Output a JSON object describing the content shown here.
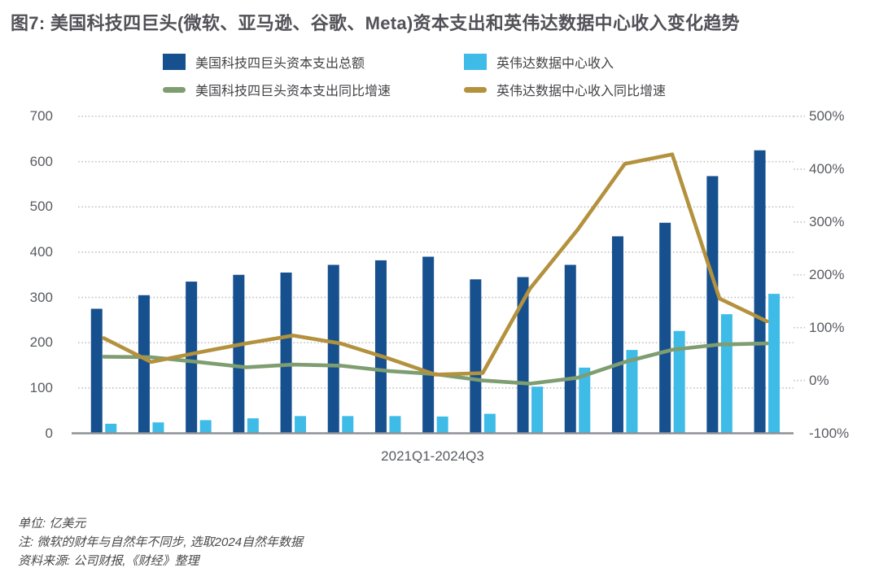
{
  "title": "图7: 美国科技四巨头(微软、亚马逊、谷歌、Meta)资本支出和英伟达数据中心收入变化趋势",
  "colors": {
    "capex_bar": "#17508e",
    "nvda_bar": "#3fbbe7",
    "capex_growth_line": "#7e9d70",
    "nvda_growth_line": "#b3913d",
    "title_text": "#525158",
    "axis_text": "#595b61",
    "gridline": "#c3c3c3",
    "baseline": "#8e9096"
  },
  "legend": [
    {
      "label": "美国科技四巨头资本支出总额",
      "swatch": "square",
      "color_key": "capex_bar"
    },
    {
      "label": "英伟达数据中心收入",
      "swatch": "square",
      "color_key": "nvda_bar"
    },
    {
      "label": "美国科技四巨头资本支出同比增速",
      "swatch": "line",
      "color_key": "capex_growth_line"
    },
    {
      "label": "英伟达数据中心收入同比增速",
      "swatch": "line",
      "color_key": "nvda_growth_line"
    }
  ],
  "chart_data": {
    "type": "bar+line dual-axis combo",
    "categories": [
      "2021Q1",
      "2021Q2",
      "2021Q3",
      "2021Q4",
      "2022Q1",
      "2022Q2",
      "2022Q3",
      "2022Q4",
      "2023Q1",
      "2023Q2",
      "2023Q3",
      "2023Q4",
      "2024Q1",
      "2024Q2",
      "2024Q3"
    ],
    "series": [
      {
        "name": "美国科技四巨头资本支出总额",
        "type": "bar",
        "axis": "left",
        "color_key": "capex_bar",
        "values": [
          275,
          305,
          335,
          350,
          355,
          372,
          382,
          390,
          340,
          345,
          372,
          435,
          465,
          568,
          625
        ]
      },
      {
        "name": "英伟达数据中心收入",
        "type": "bar",
        "axis": "left",
        "color_key": "nvda_bar",
        "values": [
          21,
          24,
          29,
          33,
          38,
          38,
          38,
          37,
          43,
          103,
          145,
          184,
          226,
          263,
          308
        ]
      },
      {
        "name": "美国科技四巨头资本支出同比增速",
        "type": "line",
        "axis": "right",
        "color_key": "capex_growth_line",
        "values": [
          45,
          44,
          35,
          25,
          30,
          28,
          18,
          12,
          0,
          -6,
          5,
          35,
          58,
          68,
          70
        ]
      },
      {
        "name": "英伟达数据中心收入同比增速",
        "type": "line",
        "axis": "right",
        "color_key": "nvda_growth_line",
        "values": [
          80,
          35,
          53,
          70,
          85,
          70,
          42,
          11,
          14,
          174,
          285,
          410,
          428,
          155,
          112
        ]
      }
    ],
    "left_axis": {
      "range": [
        0,
        700
      ],
      "ticks": [
        0,
        100,
        200,
        300,
        400,
        500,
        600,
        700
      ],
      "tick_labels": [
        "0",
        "100",
        "200",
        "300",
        "400",
        "500",
        "600",
        "700"
      ]
    },
    "right_axis": {
      "range": [
        -100,
        500
      ],
      "ticks": [
        -100,
        0,
        100,
        200,
        300,
        400,
        500
      ],
      "tick_labels": [
        "-100%",
        "0%",
        "100%",
        "200%",
        "300%",
        "400%",
        "500%"
      ]
    },
    "xlabel": "2021Q1-2024Q3",
    "grid": "horizontal dotted",
    "legend_position": "top"
  },
  "footnotes": [
    "单位: 亿美元",
    "注: 微软的财年与自然年不同步, 选取2024自然年数据",
    "资料来源: 公司财报,《财经》整理"
  ]
}
